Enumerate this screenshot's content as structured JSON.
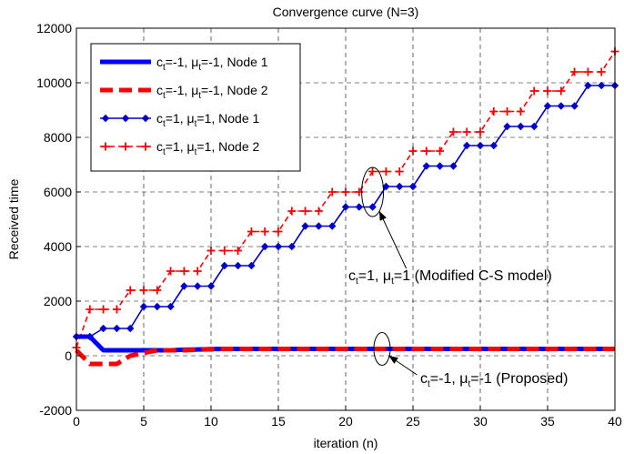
{
  "chart_data": {
    "type": "line",
    "title": "Convergence curve (N=3)",
    "xlabel": "iteration (n)",
    "ylabel": "Received time",
    "xlim": [
      0,
      40
    ],
    "ylim": [
      -2000,
      12000
    ],
    "xticks": [
      0,
      5,
      10,
      15,
      20,
      25,
      30,
      35,
      40
    ],
    "yticks": [
      -2000,
      0,
      2000,
      4000,
      6000,
      8000,
      10000,
      12000
    ],
    "grid": true,
    "legend_position": "top-left",
    "x": [
      0,
      1,
      2,
      3,
      4,
      5,
      6,
      7,
      8,
      9,
      10,
      11,
      12,
      13,
      14,
      15,
      16,
      17,
      18,
      19,
      20,
      21,
      22,
      23,
      24,
      25,
      26,
      27,
      28,
      29,
      30,
      31,
      32,
      33,
      34,
      35,
      36,
      37,
      38,
      39,
      40
    ],
    "series": [
      {
        "name": "c_t=-1, μ_t=-1, Node 1",
        "legend": {
          "c": "c",
          "c_sub": "t",
          "c_val": "=-1, ",
          "mu": "μ",
          "mu_sub": "t",
          "mu_val": "=-1, Node 1"
        },
        "color": "#0000ff",
        "style": "solid-thick",
        "marker": "none",
        "values": [
          700,
          700,
          200,
          200,
          200,
          200,
          200,
          200,
          220,
          230,
          240,
          250,
          250,
          250,
          250,
          250,
          250,
          250,
          250,
          250,
          250,
          250,
          250,
          250,
          250,
          250,
          250,
          250,
          250,
          250,
          250,
          250,
          250,
          250,
          250,
          250,
          250,
          250,
          250,
          250,
          250
        ]
      },
      {
        "name": "c_t=-1, μ_t=-1, Node 2",
        "legend": {
          "c": "c",
          "c_sub": "t",
          "c_val": "=-1, ",
          "mu": "μ",
          "mu_sub": "t",
          "mu_val": "=-1, Node 2"
        },
        "color": "#ff0000",
        "style": "dashed-thick",
        "marker": "none",
        "values": [
          200,
          -300,
          -300,
          -300,
          0,
          100,
          200,
          200,
          200,
          220,
          240,
          250,
          250,
          250,
          250,
          250,
          250,
          250,
          250,
          250,
          250,
          250,
          250,
          250,
          250,
          250,
          250,
          250,
          250,
          250,
          250,
          250,
          250,
          250,
          250,
          250,
          250,
          250,
          250,
          250,
          250
        ]
      },
      {
        "name": "c_t=1, μ_t=1, Node 1",
        "legend": {
          "c": "c",
          "c_sub": "t",
          "c_val": "=1, ",
          "mu": "μ",
          "mu_sub": "t",
          "mu_val": "=1, Node 1"
        },
        "color": "#0000cc",
        "style": "solid",
        "marker": "diamond",
        "values": [
          700,
          700,
          1000,
          1000,
          1000,
          1800,
          1800,
          1800,
          2550,
          2550,
          2550,
          3300,
          3300,
          3300,
          4000,
          4000,
          4000,
          4750,
          4750,
          4750,
          5450,
          5450,
          5450,
          6200,
          6200,
          6200,
          6950,
          6950,
          6950,
          7700,
          7700,
          7700,
          8400,
          8400,
          8400,
          9150,
          9150,
          9150,
          9900,
          9900,
          9900
        ]
      },
      {
        "name": "c_t=1, μ_t=1, Node 2",
        "legend": {
          "c": "c",
          "c_sub": "t",
          "c_val": "=1, ",
          "mu": "μ",
          "mu_sub": "t",
          "mu_val": "=1, Node 2"
        },
        "color": "#ff0000",
        "style": "dashed",
        "marker": "plus",
        "values": [
          300,
          1700,
          1700,
          1700,
          2400,
          2400,
          2400,
          3100,
          3100,
          3100,
          3850,
          3850,
          3850,
          4550,
          4550,
          4550,
          5300,
          5300,
          5300,
          6000,
          6000,
          6000,
          6750,
          6750,
          6750,
          7500,
          7500,
          7500,
          8200,
          8200,
          8200,
          8950,
          8950,
          8950,
          9700,
          9700,
          9700,
          10400,
          10400,
          10400,
          11150
        ]
      }
    ],
    "annotations": [
      {
        "id": "modified",
        "text_c": "c",
        "text_c_sub": "t",
        "text_mid": "=1, ",
        "text_mu": "μ",
        "text_mu_sub": "t",
        "text_end": "=1 (Modified C-S model)",
        "ellipse_x": 22,
        "ellipse_y": 6000,
        "arrow_from_x": 24.5,
        "arrow_from_y": 3200,
        "arrow_to_x": 22.5,
        "arrow_to_y": 5300
      },
      {
        "id": "proposed",
        "text_c": "c",
        "text_c_sub": "t",
        "text_mid": "=-1, ",
        "text_mu": "μ",
        "text_mu_sub": "t",
        "text_end": "=-1 (Proposed)",
        "ellipse_x": 22.7,
        "ellipse_y": 250,
        "arrow_from_x": 25.3,
        "arrow_from_y": -700,
        "arrow_to_x": 23.2,
        "arrow_to_y": 0
      }
    ]
  }
}
